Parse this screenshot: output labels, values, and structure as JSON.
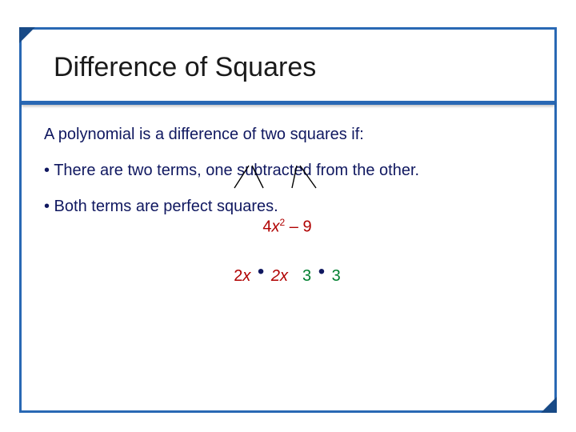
{
  "colors": {
    "frame_border": "#2968b4",
    "corner_dark": "#184a86",
    "body_text": "#101860",
    "title_text": "#1a1a1a",
    "red": "#b00000",
    "green": "#008030",
    "background": "#ffffff"
  },
  "title": "Difference of Squares",
  "intro": "A polynomial is a difference of two squares if:",
  "bullet1": "• There are two terms, one subtracted from the other.",
  "bullet2": "• Both terms are perfect squares.",
  "expression": {
    "term1_coef": "4",
    "term1_var": "x",
    "term1_exp": "2",
    "op": "–",
    "term2": "9"
  },
  "factors": {
    "left_a": "2x",
    "left_b": "2x",
    "right_a": "3",
    "right_b": "3",
    "dot": "•"
  },
  "branches": {
    "stroke": "#000000",
    "stroke_width": 1.4
  }
}
